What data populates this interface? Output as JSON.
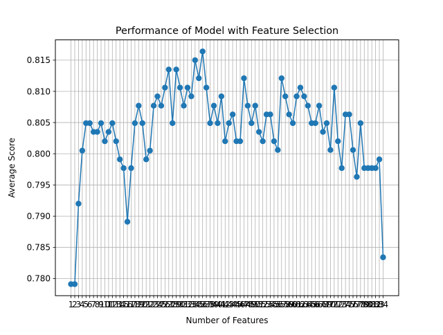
{
  "chart_data": {
    "type": "line",
    "title": "Performance of Model with Feature Selection",
    "xlabel": "Number of Features",
    "ylabel": "Average Score",
    "x": [
      1,
      2,
      3,
      4,
      5,
      6,
      7,
      8,
      9,
      10,
      11,
      12,
      13,
      14,
      15,
      16,
      17,
      18,
      19,
      20,
      21,
      22,
      23,
      24,
      25,
      26,
      27,
      28,
      29,
      30,
      31,
      32,
      33,
      34,
      35,
      36,
      37,
      38,
      39,
      40,
      41,
      42,
      43,
      44,
      45,
      46,
      47,
      48,
      49,
      50,
      51,
      52,
      53,
      54,
      55,
      56,
      57,
      58,
      59,
      60,
      61,
      62,
      63,
      64,
      65,
      66,
      67,
      68,
      69,
      70,
      71,
      72,
      73,
      74,
      75,
      76,
      77,
      78,
      79,
      80,
      81,
      82,
      83,
      84
    ],
    "y": [
      0.7791,
      0.7791,
      0.792,
      0.8005,
      0.8049,
      0.8049,
      0.8035,
      0.8035,
      0.8049,
      0.802,
      0.8035,
      0.8049,
      0.802,
      0.7991,
      0.7977,
      0.7891,
      0.7977,
      0.8049,
      0.8077,
      0.8049,
      0.7991,
      0.8005,
      0.8077,
      0.8092,
      0.8077,
      0.8106,
      0.8135,
      0.8049,
      0.8135,
      0.8106,
      0.8077,
      0.8106,
      0.8092,
      0.815,
      0.8121,
      0.8164,
      0.8106,
      0.8049,
      0.8077,
      0.8049,
      0.8092,
      0.802,
      0.8049,
      0.8063,
      0.802,
      0.802,
      0.8121,
      0.8077,
      0.8049,
      0.8077,
      0.8035,
      0.802,
      0.8063,
      0.8063,
      0.802,
      0.8006,
      0.8121,
      0.8092,
      0.8063,
      0.8049,
      0.8092,
      0.8106,
      0.8092,
      0.8077,
      0.8049,
      0.8049,
      0.8077,
      0.8035,
      0.8049,
      0.8006,
      0.8106,
      0.802,
      0.7977,
      0.8063,
      0.8063,
      0.8006,
      0.7963,
      0.8049,
      0.7977,
      0.7977,
      0.7977,
      0.7977,
      0.7991,
      0.7834
    ],
    "xticks": [
      "1",
      "2",
      "3",
      "4",
      "5",
      "6",
      "7",
      "8",
      "9",
      "10",
      "11",
      "12",
      "13",
      "14",
      "15",
      "16",
      "17",
      "18",
      "19",
      "20",
      "21",
      "22",
      "23",
      "24",
      "25",
      "26",
      "27",
      "28",
      "29",
      "30",
      "31",
      "32",
      "33",
      "34",
      "35",
      "36",
      "37",
      "38",
      "39",
      "40",
      "41",
      "42",
      "43",
      "44",
      "45",
      "46",
      "47",
      "48",
      "49",
      "50",
      "51",
      "52",
      "53",
      "54",
      "55",
      "56",
      "57",
      "58",
      "59",
      "60",
      "61",
      "62",
      "63",
      "64",
      "65",
      "66",
      "67",
      "68",
      "69",
      "70",
      "71",
      "72",
      "73",
      "74",
      "75",
      "76",
      "77",
      "78",
      "79",
      "80",
      "81",
      "82",
      "83",
      "84"
    ],
    "yticks": [
      "0.780",
      "0.785",
      "0.790",
      "0.795",
      "0.800",
      "0.805",
      "0.810",
      "0.815"
    ],
    "ytick_values": [
      0.78,
      0.785,
      0.79,
      0.795,
      0.8,
      0.805,
      0.81,
      0.815
    ],
    "xlim": [
      -3.15,
      88.15
    ],
    "ylim": [
      0.77725,
      0.81825
    ],
    "grid": true,
    "line_color": "#1f77b4",
    "marker": "circle"
  }
}
